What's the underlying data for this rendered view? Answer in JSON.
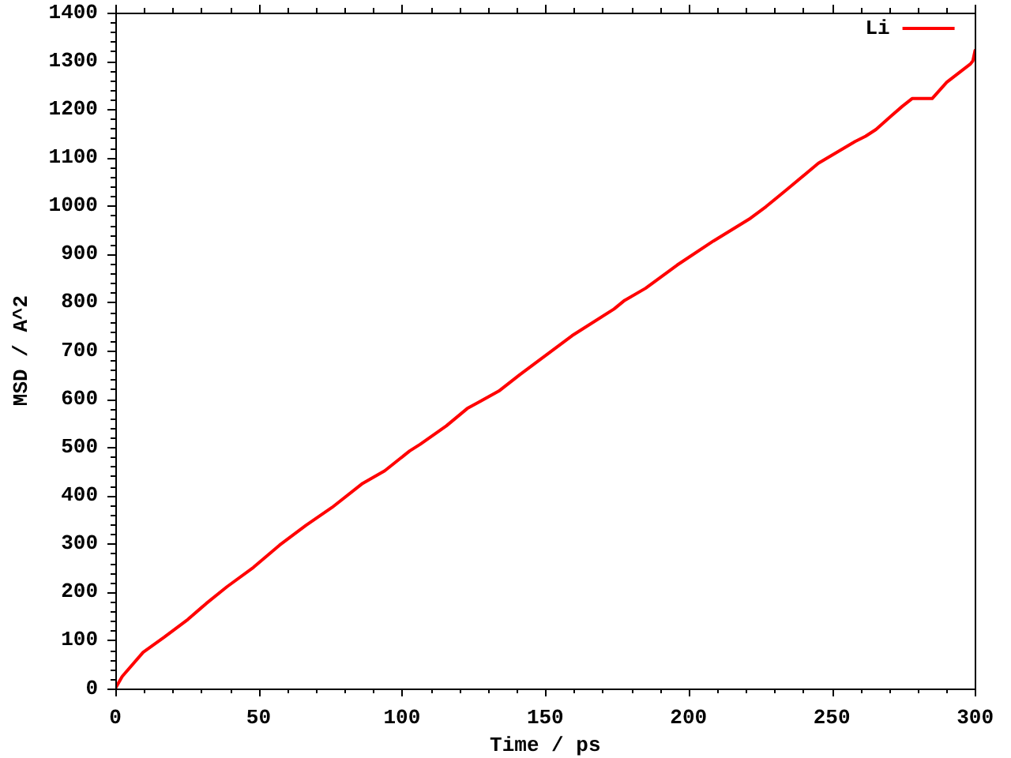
{
  "chart_data": {
    "type": "line",
    "xlabel": "Time / ps",
    "ylabel": "MSD / A^2",
    "x": [
      0,
      2.4,
      9.7,
      17,
      25.3,
      31.7,
      39,
      48.2,
      57.3,
      66.5,
      75.6,
      86.3,
      94,
      102.7,
      106.4,
      115.5,
      122.8,
      133.8,
      141.1,
      159.4,
      174,
      177.7,
      185,
      196,
      208.7,
      221.6,
      227,
      234.4,
      245.3,
      258.1,
      261.8,
      265.4,
      270.9,
      274.6,
      278,
      285,
      290.1,
      298.4,
      299.2,
      300
    ],
    "series": [
      {
        "name": "Li",
        "color": "#ff0000",
        "values": [
          0,
          25,
          75,
          106,
          143,
          176,
          211,
          251,
          297,
          338,
          375,
          425,
          451,
          492,
          506,
          544,
          580,
          616,
          650,
          731,
          786,
          804,
          829,
          877,
          927,
          974,
          998,
          1034,
          1088,
          1133,
          1144,
          1158,
          1187,
          1206,
          1222,
          1222,
          1256,
          1294,
          1300,
          1322
        ]
      }
    ],
    "xlim": [
      0,
      300
    ],
    "xticks": [
      0,
      {
        "value": 10,
        "label": null
      },
      {
        "value": 20,
        "label": null
      },
      {
        "value": 30,
        "label": null
      },
      {
        "value": 40,
        "label": null
      },
      50,
      {
        "value": 60,
        "label": null
      },
      {
        "value": 70,
        "label": null
      },
      {
        "value": 80,
        "label": null
      },
      {
        "value": 90,
        "label": null
      },
      100,
      {
        "value": 110,
        "label": null
      },
      {
        "value": 120,
        "label": null
      },
      {
        "value": 130,
        "label": null
      },
      {
        "value": 140,
        "label": null
      },
      150,
      {
        "value": 160,
        "label": null
      },
      {
        "value": 170,
        "label": null
      },
      {
        "value": 180,
        "label": null
      },
      {
        "value": 190,
        "label": null
      },
      200,
      {
        "value": 210,
        "label": null
      },
      {
        "value": 220,
        "label": null
      },
      {
        "value": 230,
        "label": null
      },
      {
        "value": 240,
        "label": null
      },
      250,
      {
        "value": 260,
        "label": null
      },
      {
        "value": 270,
        "label": null
      },
      {
        "value": 280,
        "label": null
      },
      {
        "value": 290,
        "label": null
      },
      300
    ],
    "ylim": [
      0,
      1400
    ],
    "yticks": [
      0,
      {
        "value": 20,
        "label": null
      },
      {
        "value": 40,
        "label": null
      },
      {
        "value": 60,
        "label": null
      },
      {
        "value": 80,
        "label": null
      },
      100,
      {
        "value": 120,
        "label": null
      },
      {
        "value": 140,
        "label": null
      },
      {
        "value": 160,
        "label": null
      },
      {
        "value": 180,
        "label": null
      },
      200,
      {
        "value": 220,
        "label": null
      },
      {
        "value": 240,
        "label": null
      },
      {
        "value": 260,
        "label": null
      },
      {
        "value": 280,
        "label": null
      },
      300,
      {
        "value": 320,
        "label": null
      },
      {
        "value": 340,
        "label": null
      },
      {
        "value": 360,
        "label": null
      },
      {
        "value": 380,
        "label": null
      },
      400,
      {
        "value": 420,
        "label": null
      },
      {
        "value": 440,
        "label": null
      },
      {
        "value": 460,
        "label": null
      },
      {
        "value": 480,
        "label": null
      },
      500,
      {
        "value": 520,
        "label": null
      },
      {
        "value": 540,
        "label": null
      },
      {
        "value": 560,
        "label": null
      },
      {
        "value": 580,
        "label": null
      },
      600,
      {
        "value": 620,
        "label": null
      },
      {
        "value": 640,
        "label": null
      },
      {
        "value": 660,
        "label": null
      },
      {
        "value": 680,
        "label": null
      },
      700,
      {
        "value": 720,
        "label": null
      },
      {
        "value": 740,
        "label": null
      },
      {
        "value": 760,
        "label": null
      },
      {
        "value": 780,
        "label": null
      },
      800,
      {
        "value": 820,
        "label": null
      },
      {
        "value": 840,
        "label": null
      },
      {
        "value": 860,
        "label": null
      },
      {
        "value": 880,
        "label": null
      },
      900,
      {
        "value": 920,
        "label": null
      },
      {
        "value": 940,
        "label": null
      },
      {
        "value": 960,
        "label": null
      },
      {
        "value": 980,
        "label": null
      },
      1000,
      {
        "value": 1020,
        "label": null
      },
      {
        "value": 1040,
        "label": null
      },
      {
        "value": 1060,
        "label": null
      },
      {
        "value": 1080,
        "label": null
      },
      1100,
      {
        "value": 1120,
        "label": null
      },
      {
        "value": 1140,
        "label": null
      },
      {
        "value": 1160,
        "label": null
      },
      {
        "value": 1180,
        "label": null
      },
      1200,
      {
        "value": 1220,
        "label": null
      },
      {
        "value": 1240,
        "label": null
      },
      {
        "value": 1260,
        "label": null
      },
      {
        "value": 1280,
        "label": null
      },
      1300,
      {
        "value": 1320,
        "label": null
      },
      {
        "value": 1340,
        "label": null
      },
      {
        "value": 1360,
        "label": null
      },
      {
        "value": 1380,
        "label": null
      },
      1400
    ],
    "legend": "top right"
  }
}
